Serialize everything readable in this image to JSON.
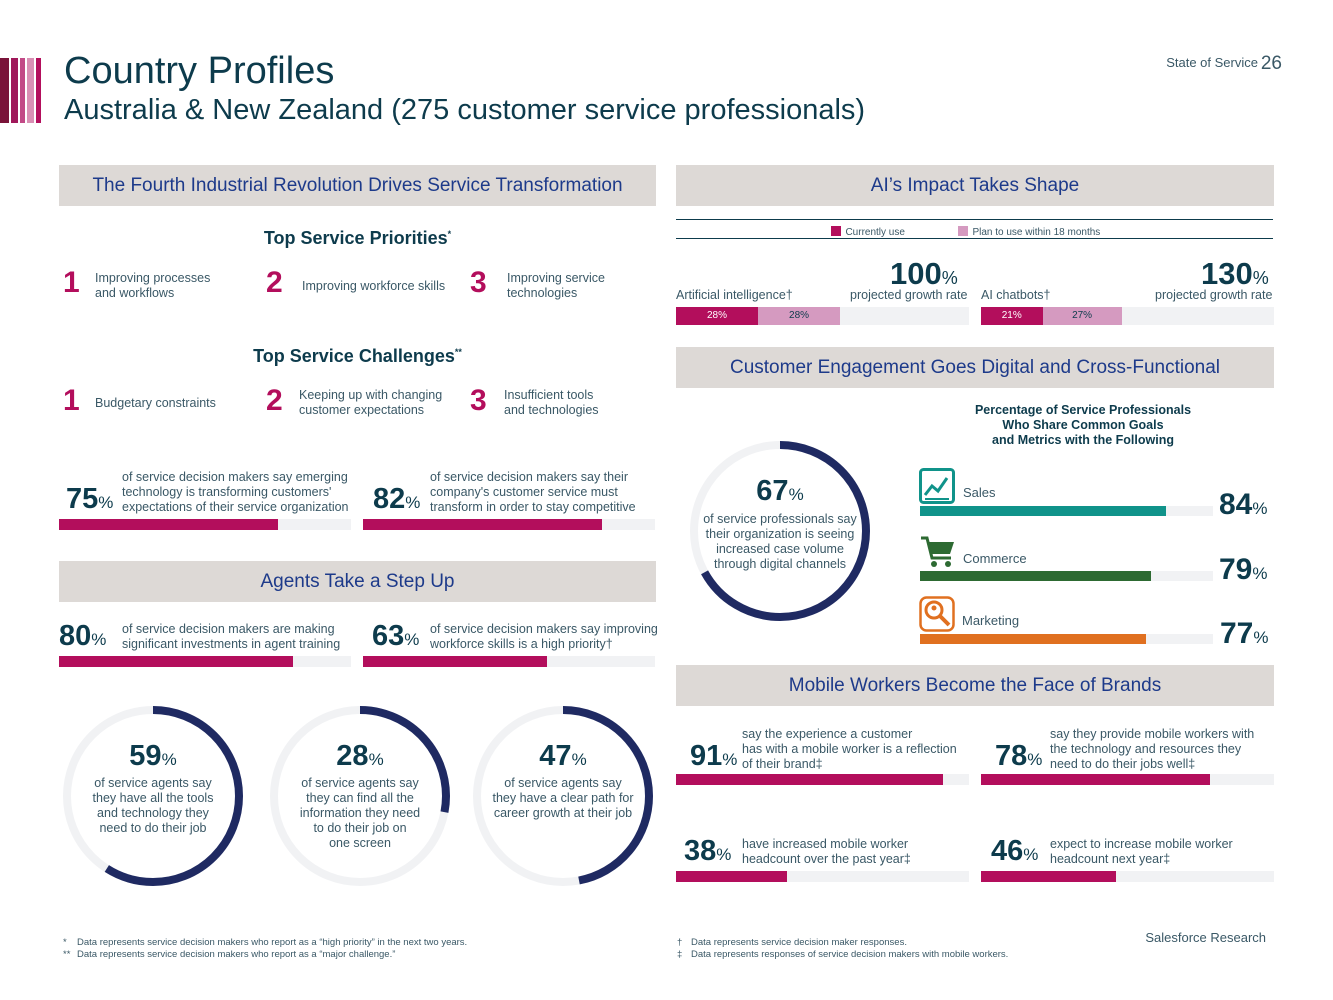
{
  "header": {
    "title": "Country Profiles",
    "subtitle": "Australia & New Zealand (275 customer service professionals)",
    "report_name": "State of Service",
    "page_number": "26",
    "stripe_colors": [
      "#7a1339",
      "#a0185a",
      "#c24a87",
      "#d98fb4",
      "#b30e5c"
    ]
  },
  "colors": {
    "magenta": "#b30e5c",
    "pink": "#d59ac0",
    "navy": "#0d3b4c",
    "donut_navy": "#1f2a62",
    "teal": "#10938a",
    "green": "#2d6a32",
    "orange": "#e07020",
    "section_bg": "#ddd9d6"
  },
  "fourth_ir": {
    "heading": "The Fourth Industrial Revolution Drives Service Transformation",
    "priorities_title": "Top Service Priorities",
    "priorities_mark": "*",
    "priorities": [
      {
        "rank": "1",
        "lines": [
          "Improving processes",
          "and workflows"
        ]
      },
      {
        "rank": "2",
        "lines": [
          "Improving workforce skills"
        ]
      },
      {
        "rank": "3",
        "lines": [
          "Improving service",
          "technologies"
        ]
      }
    ],
    "challenges_title": "Top Service Challenges",
    "challenges_mark": "**",
    "challenges": [
      {
        "rank": "1",
        "lines": [
          "Budgetary constraints"
        ]
      },
      {
        "rank": "2",
        "lines": [
          "Keeping up with changing",
          "customer expectations"
        ]
      },
      {
        "rank": "3",
        "lines": [
          "Insufficient tools",
          "and technologies"
        ]
      }
    ],
    "stats": [
      {
        "value": 75,
        "pct_label": "75",
        "lines": [
          "of service decision makers say emerging",
          "technology is transforming customers'",
          "expectations of their service organization"
        ]
      },
      {
        "value": 82,
        "pct_label": "82",
        "lines": [
          "of service decision makers say their",
          "company's customer service must",
          "transform in order to stay competitive"
        ]
      }
    ]
  },
  "agents": {
    "heading": "Agents Take a Step Up",
    "stats": [
      {
        "value": 80,
        "pct_label": "80",
        "lines": [
          "of service decision makers are making",
          "significant investments in agent training"
        ]
      },
      {
        "value": 63,
        "pct_label": "63",
        "lines": [
          "of service decision makers say improving",
          "workforce skills is a high priority†"
        ]
      }
    ],
    "donuts": [
      {
        "value": 59,
        "pct_label": "59",
        "lines": [
          "of service agents say",
          "they have all the tools",
          "and technology they",
          "need to do their job"
        ]
      },
      {
        "value": 28,
        "pct_label": "28",
        "lines": [
          "of service agents say",
          "they can find all the",
          "information they need",
          "to do their job on",
          "one screen"
        ]
      },
      {
        "value": 47,
        "pct_label": "47",
        "lines": [
          "of service agents say",
          "they have a clear path for",
          "career growth at their job"
        ]
      }
    ]
  },
  "ai": {
    "heading": "AI’s Impact Takes Shape",
    "legend": {
      "current": "Currently use",
      "plan": "Plan to use within 18 months"
    },
    "items": [
      {
        "label": "Artificial intelligence†",
        "growth": "100",
        "growth_label": "projected growth rate",
        "current": 28,
        "current_label": "28%",
        "plan": 28,
        "plan_label": "28%"
      },
      {
        "label": "AI chatbots†",
        "growth": "130",
        "growth_label": "projected growth rate",
        "current": 21,
        "current_label": "21%",
        "plan": 27,
        "plan_label": "27%"
      }
    ]
  },
  "engagement": {
    "heading": "Customer Engagement Goes Digital and Cross-Functional",
    "donut": {
      "value": 67,
      "pct_label": "67",
      "lines": [
        "of service professionals say",
        "their organization is seeing",
        "increased case volume",
        "through digital channels"
      ]
    },
    "chart_title_lines": [
      "Percentage of Service Professionals",
      "Who Share Common Goals",
      "and Metrics with the Following"
    ],
    "bars": [
      {
        "label": "Sales",
        "value": 84,
        "pct_label": "84",
        "icon": "sales-chart-icon",
        "color": "#10938a"
      },
      {
        "label": "Commerce",
        "value": 79,
        "pct_label": "79",
        "icon": "shopping-cart-icon",
        "color": "#2d6a32"
      },
      {
        "label": "Marketing",
        "value": 77,
        "pct_label": "77",
        "icon": "magnifier-icon",
        "color": "#e07020"
      }
    ]
  },
  "mobile": {
    "heading": "Mobile Workers Become the Face of Brands",
    "stats": [
      {
        "value": 91,
        "pct_label": "91",
        "lines": [
          "say the experience a customer",
          "has with a mobile worker is a reflection",
          "of their brand‡"
        ]
      },
      {
        "value": 78,
        "pct_label": "78",
        "lines": [
          "say they provide mobile workers with",
          "the technology and resources they",
          "need to do their jobs well‡"
        ]
      },
      {
        "value": 38,
        "pct_label": "38",
        "lines": [
          "have increased mobile worker",
          "headcount over the past year‡"
        ]
      },
      {
        "value": 46,
        "pct_label": "46",
        "lines": [
          "expect to increase mobile worker",
          "headcount next year‡"
        ]
      }
    ]
  },
  "footnotes": {
    "left": [
      {
        "mark": "*",
        "text": "Data represents service decision makers who report as a “high priority” in the next two years."
      },
      {
        "mark": "**",
        "text": "Data represents service decision makers who report as a “major challenge.”"
      }
    ],
    "right": [
      {
        "mark": "†",
        "text": "Data represents service decision maker responses."
      },
      {
        "mark": "‡",
        "text": "Data represents responses of service decision makers with mobile workers."
      }
    ],
    "brand": "Salesforce Research"
  }
}
